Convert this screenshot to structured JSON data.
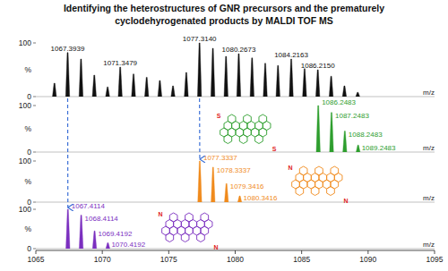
{
  "chart_data": {
    "type": "spectrum",
    "title": "Identifying the heterostructures of GNR precursors and the prematurely cyclodehyrogenated products by MALDI TOF MS",
    "xlabel": "m/z",
    "ylabel": "%",
    "xlim": [
      1065,
      1095
    ],
    "xticks": [
      1065,
      1070,
      1075,
      1080,
      1085,
      1090,
      1095
    ],
    "ylim": [
      0,
      100
    ],
    "yticks": [
      0,
      100
    ],
    "series": [
      {
        "color": "#111111",
        "x": [
          1066.4,
          1067.3939,
          1068.4,
          1069.4,
          1070.4,
          1071.3479,
          1072.35,
          1073.34,
          1074.33,
          1075.32,
          1076.32,
          1077.314,
          1078.32,
          1079.31,
          1080.2673,
          1081.27,
          1082.26,
          1083.22,
          1084.2163,
          1085.22,
          1086.215,
          1087.22,
          1088.22,
          1089.22
        ],
        "values": [
          25,
          82,
          70,
          40,
          18,
          55,
          42,
          36,
          30,
          20,
          45,
          100,
          90,
          75,
          80,
          72,
          62,
          58,
          70,
          52,
          50,
          38,
          20,
          8
        ],
        "x_labels": [
          null,
          "1067.3939",
          null,
          null,
          null,
          "1071.3479",
          null,
          null,
          null,
          null,
          null,
          "1077.3140",
          null,
          null,
          "1080.2673",
          null,
          null,
          null,
          "1084.2163",
          null,
          "1086.2150",
          null,
          null,
          null
        ],
        "atom_labels": []
      },
      {
        "color": "#2e9e2e",
        "x": [
          1086.2483,
          1087.2483,
          1088.2483,
          1089.2483
        ],
        "values": [
          100,
          85,
          45,
          15
        ],
        "x_labels": [
          "1086.2483",
          "1087.2483",
          "1088.2483",
          "1089.2483"
        ],
        "atom_labels": [
          "S",
          "S"
        ]
      },
      {
        "color": "#f08a1c",
        "x": [
          1077.3337,
          1078.3337,
          1079.3416,
          1080.3416
        ],
        "values": [
          100,
          85,
          45,
          15
        ],
        "x_labels": [
          "1077.3337",
          "1078.3337",
          "1079.3416",
          "1080.3416"
        ],
        "atom_labels": [
          "N",
          "N"
        ]
      },
      {
        "color": "#7b2fbf",
        "x": [
          1067.4114,
          1068.4114,
          1069.4192,
          1070.4192
        ],
        "values": [
          100,
          85,
          45,
          15
        ],
        "x_labels": [
          "1067.4114",
          "1068.4114",
          "1069.4192",
          "1070.4192"
        ],
        "atom_labels": [
          "N",
          "N"
        ]
      }
    ]
  }
}
